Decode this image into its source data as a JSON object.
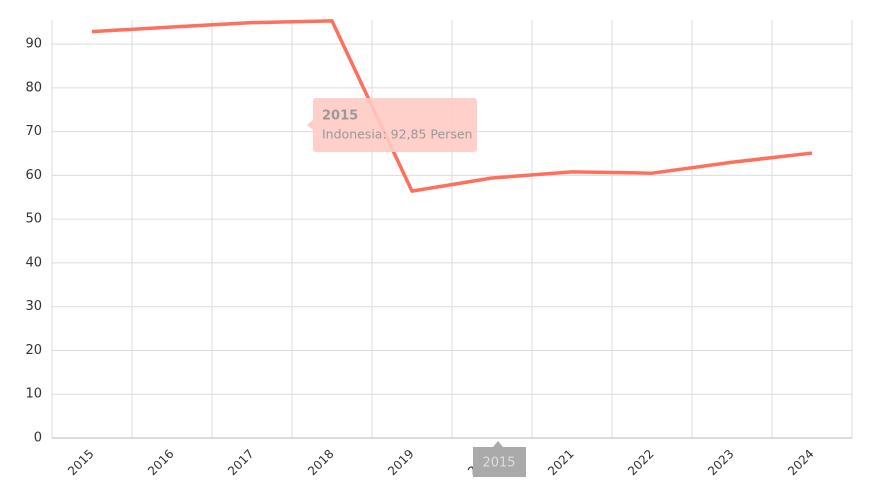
{
  "chart_data": {
    "type": "line",
    "categories": [
      "2015",
      "2016",
      "2017",
      "2018",
      "2019",
      "2020",
      "2021",
      "2022",
      "2023",
      "2024"
    ],
    "values": [
      92.85,
      93.9,
      94.9,
      95.3,
      56.4,
      59.4,
      60.8,
      60.5,
      63.0,
      65.1
    ],
    "color": "#ff6f5e",
    "ylim": [
      0,
      95.5
    ],
    "yticks": [
      0,
      10,
      20,
      30,
      40,
      50,
      60,
      70,
      80,
      90
    ],
    "grid": true,
    "tooltip": {
      "title": "2015",
      "text": "Indonesia: 92,85 Persen"
    },
    "crosshair_label": "2015"
  }
}
